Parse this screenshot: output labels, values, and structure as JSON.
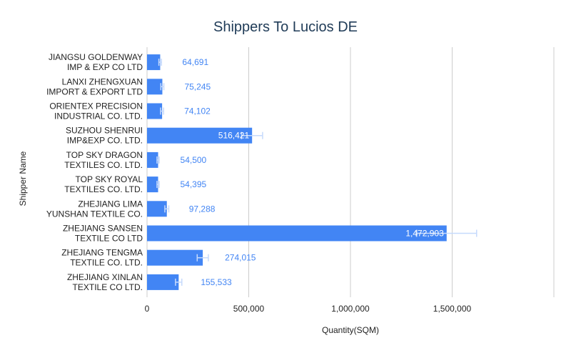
{
  "chart_data": {
    "type": "bar",
    "orientation": "horizontal",
    "title": "Shippers To Lucios DE",
    "xlabel": "Quantity(SQM)",
    "ylabel": "Shipper Name",
    "categories": [
      [
        "JIANGSU GOLDENWAY",
        "IMP & EXP CO LTD"
      ],
      [
        "LANXI ZHENGXUAN",
        "IMPORT & EXPORT LTD"
      ],
      [
        "ORIENTEX PRECISION",
        "INDUSTRIAL CO. LTD."
      ],
      [
        "SUZHOU SHENRUI",
        "IMP&EXP CO. LTD."
      ],
      [
        "TOP SKY DRAGON",
        "TEXTILES CO. LTD."
      ],
      [
        "TOP SKY ROYAL",
        "TEXTILES CO. LTD."
      ],
      [
        "ZHEJIANG LIMA",
        "YUNSHAN TEXTILE CO."
      ],
      [
        "ZHEJIANG SANSEN",
        "TEXTILE CO LTD"
      ],
      [
        "ZHEJIANG TENGMA",
        "TEXTILE CO. LTD."
      ],
      [
        "ZHEJIANG XINLAN",
        "TEXTILE CO LTD."
      ]
    ],
    "values": [
      64691,
      75245,
      74102,
      516421,
      54500,
      54395,
      97288,
      1472903,
      274015,
      155533
    ],
    "value_labels": [
      "64,691",
      "75,245",
      "74,102",
      "516,421",
      "54,500",
      "54,395",
      "97,288",
      "1,472,903",
      "274,015",
      "155,533"
    ],
    "error_bars": true,
    "error_fraction": 0.1,
    "xlim": [
      0,
      2000000
    ],
    "xticks": [
      0,
      500000,
      1000000,
      1500000
    ],
    "xtick_labels": [
      "0",
      "500,000",
      "1,000,000",
      "1,500,000"
    ],
    "gridlines": "vertical",
    "legend": "none",
    "colors": {
      "bar": "#4285f4",
      "label_outside": "#4285f4",
      "label_inside": "#ffffff",
      "error_bar": "#c6dafc",
      "grid": "#cccccc",
      "title": "#1f3b57"
    }
  }
}
